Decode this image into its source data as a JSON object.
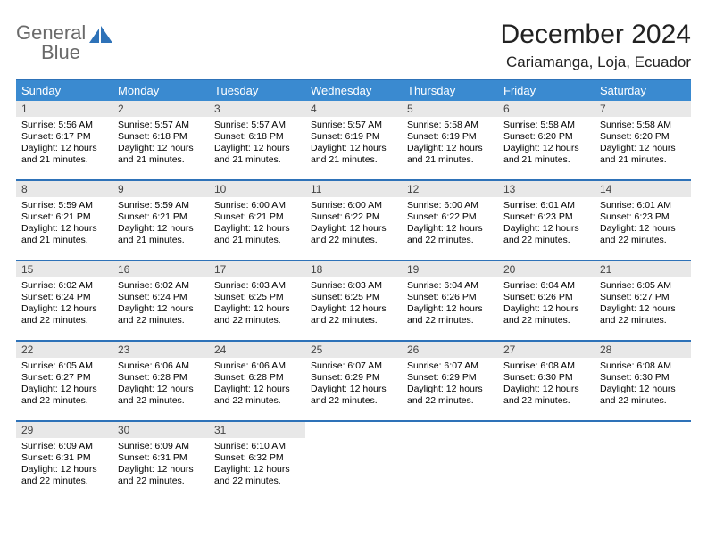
{
  "brand": {
    "word1": "General",
    "word2": "Blue"
  },
  "title": "December 2024",
  "location": "Cariamanga, Loja, Ecuador",
  "style": {
    "accent": "#2e72b8",
    "header_bg": "#3a8ad0",
    "daynum_bg": "#e8e8e8",
    "background": "#ffffff",
    "logo_gray": "#6a6a6a",
    "title_fontsize": 30,
    "location_fontsize": 17,
    "dayname_fontsize": 13,
    "body_fontsize": 10.5
  },
  "daynames": [
    "Sunday",
    "Monday",
    "Tuesday",
    "Wednesday",
    "Thursday",
    "Friday",
    "Saturday"
  ],
  "weeks": [
    [
      {
        "n": "1",
        "sr": "5:56 AM",
        "ss": "6:17 PM",
        "dl": "12 hours and 21 minutes."
      },
      {
        "n": "2",
        "sr": "5:57 AM",
        "ss": "6:18 PM",
        "dl": "12 hours and 21 minutes."
      },
      {
        "n": "3",
        "sr": "5:57 AM",
        "ss": "6:18 PM",
        "dl": "12 hours and 21 minutes."
      },
      {
        "n": "4",
        "sr": "5:57 AM",
        "ss": "6:19 PM",
        "dl": "12 hours and 21 minutes."
      },
      {
        "n": "5",
        "sr": "5:58 AM",
        "ss": "6:19 PM",
        "dl": "12 hours and 21 minutes."
      },
      {
        "n": "6",
        "sr": "5:58 AM",
        "ss": "6:20 PM",
        "dl": "12 hours and 21 minutes."
      },
      {
        "n": "7",
        "sr": "5:58 AM",
        "ss": "6:20 PM",
        "dl": "12 hours and 21 minutes."
      }
    ],
    [
      {
        "n": "8",
        "sr": "5:59 AM",
        "ss": "6:21 PM",
        "dl": "12 hours and 21 minutes."
      },
      {
        "n": "9",
        "sr": "5:59 AM",
        "ss": "6:21 PM",
        "dl": "12 hours and 21 minutes."
      },
      {
        "n": "10",
        "sr": "6:00 AM",
        "ss": "6:21 PM",
        "dl": "12 hours and 21 minutes."
      },
      {
        "n": "11",
        "sr": "6:00 AM",
        "ss": "6:22 PM",
        "dl": "12 hours and 22 minutes."
      },
      {
        "n": "12",
        "sr": "6:00 AM",
        "ss": "6:22 PM",
        "dl": "12 hours and 22 minutes."
      },
      {
        "n": "13",
        "sr": "6:01 AM",
        "ss": "6:23 PM",
        "dl": "12 hours and 22 minutes."
      },
      {
        "n": "14",
        "sr": "6:01 AM",
        "ss": "6:23 PM",
        "dl": "12 hours and 22 minutes."
      }
    ],
    [
      {
        "n": "15",
        "sr": "6:02 AM",
        "ss": "6:24 PM",
        "dl": "12 hours and 22 minutes."
      },
      {
        "n": "16",
        "sr": "6:02 AM",
        "ss": "6:24 PM",
        "dl": "12 hours and 22 minutes."
      },
      {
        "n": "17",
        "sr": "6:03 AM",
        "ss": "6:25 PM",
        "dl": "12 hours and 22 minutes."
      },
      {
        "n": "18",
        "sr": "6:03 AM",
        "ss": "6:25 PM",
        "dl": "12 hours and 22 minutes."
      },
      {
        "n": "19",
        "sr": "6:04 AM",
        "ss": "6:26 PM",
        "dl": "12 hours and 22 minutes."
      },
      {
        "n": "20",
        "sr": "6:04 AM",
        "ss": "6:26 PM",
        "dl": "12 hours and 22 minutes."
      },
      {
        "n": "21",
        "sr": "6:05 AM",
        "ss": "6:27 PM",
        "dl": "12 hours and 22 minutes."
      }
    ],
    [
      {
        "n": "22",
        "sr": "6:05 AM",
        "ss": "6:27 PM",
        "dl": "12 hours and 22 minutes."
      },
      {
        "n": "23",
        "sr": "6:06 AM",
        "ss": "6:28 PM",
        "dl": "12 hours and 22 minutes."
      },
      {
        "n": "24",
        "sr": "6:06 AM",
        "ss": "6:28 PM",
        "dl": "12 hours and 22 minutes."
      },
      {
        "n": "25",
        "sr": "6:07 AM",
        "ss": "6:29 PM",
        "dl": "12 hours and 22 minutes."
      },
      {
        "n": "26",
        "sr": "6:07 AM",
        "ss": "6:29 PM",
        "dl": "12 hours and 22 minutes."
      },
      {
        "n": "27",
        "sr": "6:08 AM",
        "ss": "6:30 PM",
        "dl": "12 hours and 22 minutes."
      },
      {
        "n": "28",
        "sr": "6:08 AM",
        "ss": "6:30 PM",
        "dl": "12 hours and 22 minutes."
      }
    ],
    [
      {
        "n": "29",
        "sr": "6:09 AM",
        "ss": "6:31 PM",
        "dl": "12 hours and 22 minutes."
      },
      {
        "n": "30",
        "sr": "6:09 AM",
        "ss": "6:31 PM",
        "dl": "12 hours and 22 minutes."
      },
      {
        "n": "31",
        "sr": "6:10 AM",
        "ss": "6:32 PM",
        "dl": "12 hours and 22 minutes."
      },
      null,
      null,
      null,
      null
    ]
  ],
  "labels": {
    "sunrise": "Sunrise:",
    "sunset": "Sunset:",
    "daylight": "Daylight:"
  }
}
